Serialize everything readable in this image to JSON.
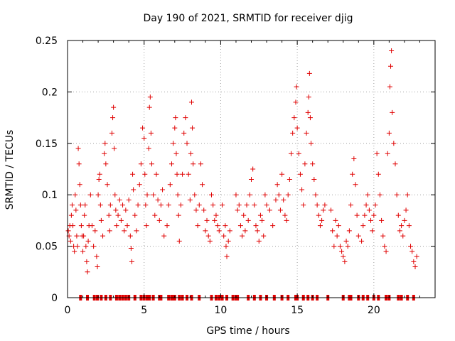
{
  "chart_data": {
    "type": "scatter",
    "title": "Day 190 of 2021, SRMTID for receiver djig",
    "xlabel": "GPS time / hours",
    "ylabel": "SRMTID / TECUs",
    "xlim": [
      0,
      24
    ],
    "ylim": [
      0,
      0.25
    ],
    "xticks": [
      0,
      5,
      10,
      15,
      20
    ],
    "xtick_labels": [
      "0",
      "5",
      "10",
      "15",
      "20"
    ],
    "yticks": [
      0,
      0.05,
      0.1,
      0.15,
      0.2,
      0.25
    ],
    "ytick_labels": [
      "0",
      "0.05",
      "0.1",
      "0.15",
      "0.2",
      "0.25"
    ],
    "grid": true,
    "series": [
      {
        "name": "SRMTID",
        "marker": "+",
        "color": "#e00000",
        "points": [
          [
            0.05,
            0.065
          ],
          [
            0.1,
            0.06
          ],
          [
            0.15,
            0.07
          ],
          [
            0.2,
            0.055
          ],
          [
            0.25,
            0.08
          ],
          [
            0.3,
            0.09
          ],
          [
            0.35,
            0.07
          ],
          [
            0.4,
            0.05
          ],
          [
            0.45,
            0.045
          ],
          [
            0.5,
            0.1
          ],
          [
            0.55,
            0.085
          ],
          [
            0.6,
            0.06
          ],
          [
            0.65,
            0.05
          ],
          [
            0.7,
            0.145
          ],
          [
            0.75,
            0.13
          ],
          [
            0.8,
            0.11
          ],
          [
            0.85,
            0.09
          ],
          [
            0.9,
            0.07
          ],
          [
            0.95,
            0.06
          ],
          [
            1.0,
            0.045
          ],
          [
            1.05,
            0.06
          ],
          [
            1.1,
            0.08
          ],
          [
            1.15,
            0.09
          ],
          [
            1.2,
            0.05
          ],
          [
            1.25,
            0.035
          ],
          [
            1.3,
            0.025
          ],
          [
            1.35,
            0.055
          ],
          [
            1.4,
            0.07
          ],
          [
            1.5,
            0.1
          ],
          [
            1.6,
            0.07
          ],
          [
            1.7,
            0.05
          ],
          [
            1.8,
            0.065
          ],
          [
            1.9,
            0.04
          ],
          [
            1.95,
            0.03
          ],
          [
            2.0,
            0.1
          ],
          [
            2.05,
            0.115
          ],
          [
            2.1,
            0.12
          ],
          [
            2.15,
            0.09
          ],
          [
            2.2,
            0.075
          ],
          [
            2.3,
            0.06
          ],
          [
            2.4,
            0.14
          ],
          [
            2.45,
            0.15
          ],
          [
            2.5,
            0.13
          ],
          [
            2.6,
            0.11
          ],
          [
            2.7,
            0.08
          ],
          [
            2.75,
            0.065
          ],
          [
            2.8,
            0.09
          ],
          [
            2.9,
            0.16
          ],
          [
            2.95,
            0.175
          ],
          [
            3.0,
            0.185
          ],
          [
            3.05,
            0.145
          ],
          [
            3.1,
            0.1
          ],
          [
            3.15,
            0.085
          ],
          [
            3.2,
            0.07
          ],
          [
            3.3,
            0.08
          ],
          [
            3.4,
            0.095
          ],
          [
            3.5,
            0.075
          ],
          [
            3.6,
            0.09
          ],
          [
            3.7,
            0.065
          ],
          [
            3.8,
            0.085
          ],
          [
            3.9,
            0.07
          ],
          [
            4.0,
            0.095
          ],
          [
            4.1,
            0.06
          ],
          [
            4.15,
            0.048
          ],
          [
            4.2,
            0.035
          ],
          [
            4.25,
            0.12
          ],
          [
            4.3,
            0.105
          ],
          [
            4.4,
            0.08
          ],
          [
            4.5,
            0.065
          ],
          [
            4.6,
            0.09
          ],
          [
            4.7,
            0.11
          ],
          [
            4.8,
            0.13
          ],
          [
            4.9,
            0.165
          ],
          [
            5.0,
            0.155
          ],
          [
            5.05,
            0.12
          ],
          [
            5.1,
            0.09
          ],
          [
            5.15,
            0.07
          ],
          [
            5.2,
            0.1
          ],
          [
            5.3,
            0.145
          ],
          [
            5.35,
            0.185
          ],
          [
            5.4,
            0.195
          ],
          [
            5.45,
            0.16
          ],
          [
            5.5,
            0.13
          ],
          [
            5.6,
            0.1
          ],
          [
            5.7,
            0.08
          ],
          [
            5.8,
            0.12
          ],
          [
            5.9,
            0.095
          ],
          [
            6.0,
            0.075
          ],
          [
            6.1,
            0.09
          ],
          [
            6.2,
            0.105
          ],
          [
            6.3,
            0.06
          ],
          [
            6.5,
            0.07
          ],
          [
            6.6,
            0.09
          ],
          [
            6.7,
            0.11
          ],
          [
            6.8,
            0.13
          ],
          [
            6.9,
            0.15
          ],
          [
            7.0,
            0.165
          ],
          [
            7.05,
            0.175
          ],
          [
            7.1,
            0.14
          ],
          [
            7.15,
            0.12
          ],
          [
            7.2,
            0.1
          ],
          [
            7.25,
            0.08
          ],
          [
            7.3,
            0.055
          ],
          [
            7.4,
            0.09
          ],
          [
            7.5,
            0.12
          ],
          [
            7.6,
            0.16
          ],
          [
            7.7,
            0.175
          ],
          [
            7.8,
            0.15
          ],
          [
            7.9,
            0.12
          ],
          [
            8.0,
            0.095
          ],
          [
            8.05,
            0.14
          ],
          [
            8.1,
            0.19
          ],
          [
            8.15,
            0.165
          ],
          [
            8.2,
            0.13
          ],
          [
            8.3,
            0.1
          ],
          [
            8.4,
            0.085
          ],
          [
            8.5,
            0.07
          ],
          [
            8.6,
            0.09
          ],
          [
            8.7,
            0.13
          ],
          [
            8.8,
            0.11
          ],
          [
            8.9,
            0.085
          ],
          [
            9.0,
            0.065
          ],
          [
            9.1,
            0.075
          ],
          [
            9.2,
            0.06
          ],
          [
            9.3,
            0.055
          ],
          [
            9.4,
            0.1
          ],
          [
            9.5,
            0.09
          ],
          [
            9.6,
            0.075
          ],
          [
            9.7,
            0.08
          ],
          [
            9.8,
            0.07
          ],
          [
            9.9,
            0.065
          ],
          [
            10.1,
            0.09
          ],
          [
            10.2,
            0.06
          ],
          [
            10.3,
            0.07
          ],
          [
            10.35,
            0.05
          ],
          [
            10.4,
            0.04
          ],
          [
            10.5,
            0.055
          ],
          [
            10.6,
            0.065
          ],
          [
            11.0,
            0.1
          ],
          [
            11.1,
            0.085
          ],
          [
            11.2,
            0.09
          ],
          [
            11.3,
            0.07
          ],
          [
            11.4,
            0.06
          ],
          [
            11.5,
            0.08
          ],
          [
            11.6,
            0.065
          ],
          [
            11.7,
            0.09
          ],
          [
            11.8,
            0.075
          ],
          [
            11.9,
            0.1
          ],
          [
            12.0,
            0.115
          ],
          [
            12.1,
            0.125
          ],
          [
            12.2,
            0.09
          ],
          [
            12.3,
            0.07
          ],
          [
            12.4,
            0.065
          ],
          [
            12.5,
            0.055
          ],
          [
            12.6,
            0.08
          ],
          [
            12.7,
            0.075
          ],
          [
            12.8,
            0.06
          ],
          [
            12.9,
            0.1
          ],
          [
            13.0,
            0.09
          ],
          [
            13.2,
            0.085
          ],
          [
            13.4,
            0.07
          ],
          [
            13.6,
            0.095
          ],
          [
            13.7,
            0.11
          ],
          [
            13.8,
            0.1
          ],
          [
            13.9,
            0.085
          ],
          [
            14.0,
            0.12
          ],
          [
            14.1,
            0.095
          ],
          [
            14.2,
            0.08
          ],
          [
            14.3,
            0.075
          ],
          [
            14.4,
            0.1
          ],
          [
            14.5,
            0.115
          ],
          [
            14.6,
            0.14
          ],
          [
            14.7,
            0.16
          ],
          [
            14.8,
            0.175
          ],
          [
            14.9,
            0.19
          ],
          [
            14.95,
            0.205
          ],
          [
            15.0,
            0.165
          ],
          [
            15.1,
            0.14
          ],
          [
            15.2,
            0.12
          ],
          [
            15.3,
            0.105
          ],
          [
            15.4,
            0.09
          ],
          [
            15.5,
            0.13
          ],
          [
            15.6,
            0.16
          ],
          [
            15.7,
            0.18
          ],
          [
            15.75,
            0.195
          ],
          [
            15.8,
            0.218
          ],
          [
            15.85,
            0.175
          ],
          [
            15.9,
            0.15
          ],
          [
            16.0,
            0.13
          ],
          [
            16.1,
            0.115
          ],
          [
            16.2,
            0.1
          ],
          [
            16.3,
            0.09
          ],
          [
            16.4,
            0.08
          ],
          [
            16.5,
            0.07
          ],
          [
            16.6,
            0.075
          ],
          [
            16.7,
            0.085
          ],
          [
            16.8,
            0.09
          ],
          [
            17.2,
            0.085
          ],
          [
            17.3,
            0.065
          ],
          [
            17.4,
            0.05
          ],
          [
            17.5,
            0.075
          ],
          [
            17.6,
            0.06
          ],
          [
            17.7,
            0.07
          ],
          [
            17.8,
            0.05
          ],
          [
            17.9,
            0.045
          ],
          [
            18.0,
            0.04
          ],
          [
            18.1,
            0.035
          ],
          [
            18.2,
            0.055
          ],
          [
            18.3,
            0.05
          ],
          [
            18.4,
            0.065
          ],
          [
            18.5,
            0.09
          ],
          [
            18.6,
            0.12
          ],
          [
            18.7,
            0.135
          ],
          [
            18.8,
            0.11
          ],
          [
            18.9,
            0.08
          ],
          [
            19.0,
            0.06
          ],
          [
            19.2,
            0.055
          ],
          [
            19.3,
            0.07
          ],
          [
            19.4,
            0.08
          ],
          [
            19.5,
            0.09
          ],
          [
            19.6,
            0.1
          ],
          [
            19.7,
            0.085
          ],
          [
            19.8,
            0.075
          ],
          [
            19.9,
            0.065
          ],
          [
            20.0,
            0.08
          ],
          [
            20.1,
            0.09
          ],
          [
            20.2,
            0.14
          ],
          [
            20.3,
            0.12
          ],
          [
            20.4,
            0.1
          ],
          [
            20.5,
            0.075
          ],
          [
            20.6,
            0.06
          ],
          [
            20.7,
            0.05
          ],
          [
            20.8,
            0.045
          ],
          [
            20.9,
            0.14
          ],
          [
            21.0,
            0.16
          ],
          [
            21.05,
            0.205
          ],
          [
            21.1,
            0.225
          ],
          [
            21.15,
            0.24
          ],
          [
            21.2,
            0.18
          ],
          [
            21.3,
            0.15
          ],
          [
            21.4,
            0.13
          ],
          [
            21.5,
            0.1
          ],
          [
            21.6,
            0.08
          ],
          [
            21.7,
            0.065
          ],
          [
            21.8,
            0.07
          ],
          [
            21.9,
            0.06
          ],
          [
            22.0,
            0.075
          ],
          [
            22.1,
            0.085
          ],
          [
            22.2,
            0.1
          ],
          [
            22.3,
            0.07
          ],
          [
            22.4,
            0.05
          ],
          [
            22.5,
            0.045
          ],
          [
            22.6,
            0.035
          ],
          [
            22.7,
            0.03
          ],
          [
            22.8,
            0.04
          ]
        ]
      }
    ],
    "zero_markers_x": [
      0.85,
      1.3,
      1.75,
      1.95,
      2.2,
      2.5,
      2.8,
      3.2,
      3.4,
      3.6,
      3.8,
      4.0,
      4.4,
      4.8,
      5.0,
      5.2,
      5.35,
      5.6,
      6.0,
      6.1,
      6.6,
      6.8,
      6.9,
      7.0,
      7.3,
      7.5,
      7.8,
      8.1,
      8.6,
      9.4,
      9.7,
      9.9,
      10.1,
      10.4,
      10.8,
      11.0,
      11.1,
      11.8,
      12.2,
      12.6,
      13.0,
      13.5,
      14.0,
      14.4,
      14.9,
      15.0,
      15.4,
      15.7,
      16.0,
      16.3,
      17.0,
      18.0,
      18.4,
      18.5,
      19.0,
      19.3,
      19.6,
      20.0,
      20.3,
      20.8,
      21.0,
      21.6,
      21.8,
      22.2,
      22.6
    ]
  }
}
